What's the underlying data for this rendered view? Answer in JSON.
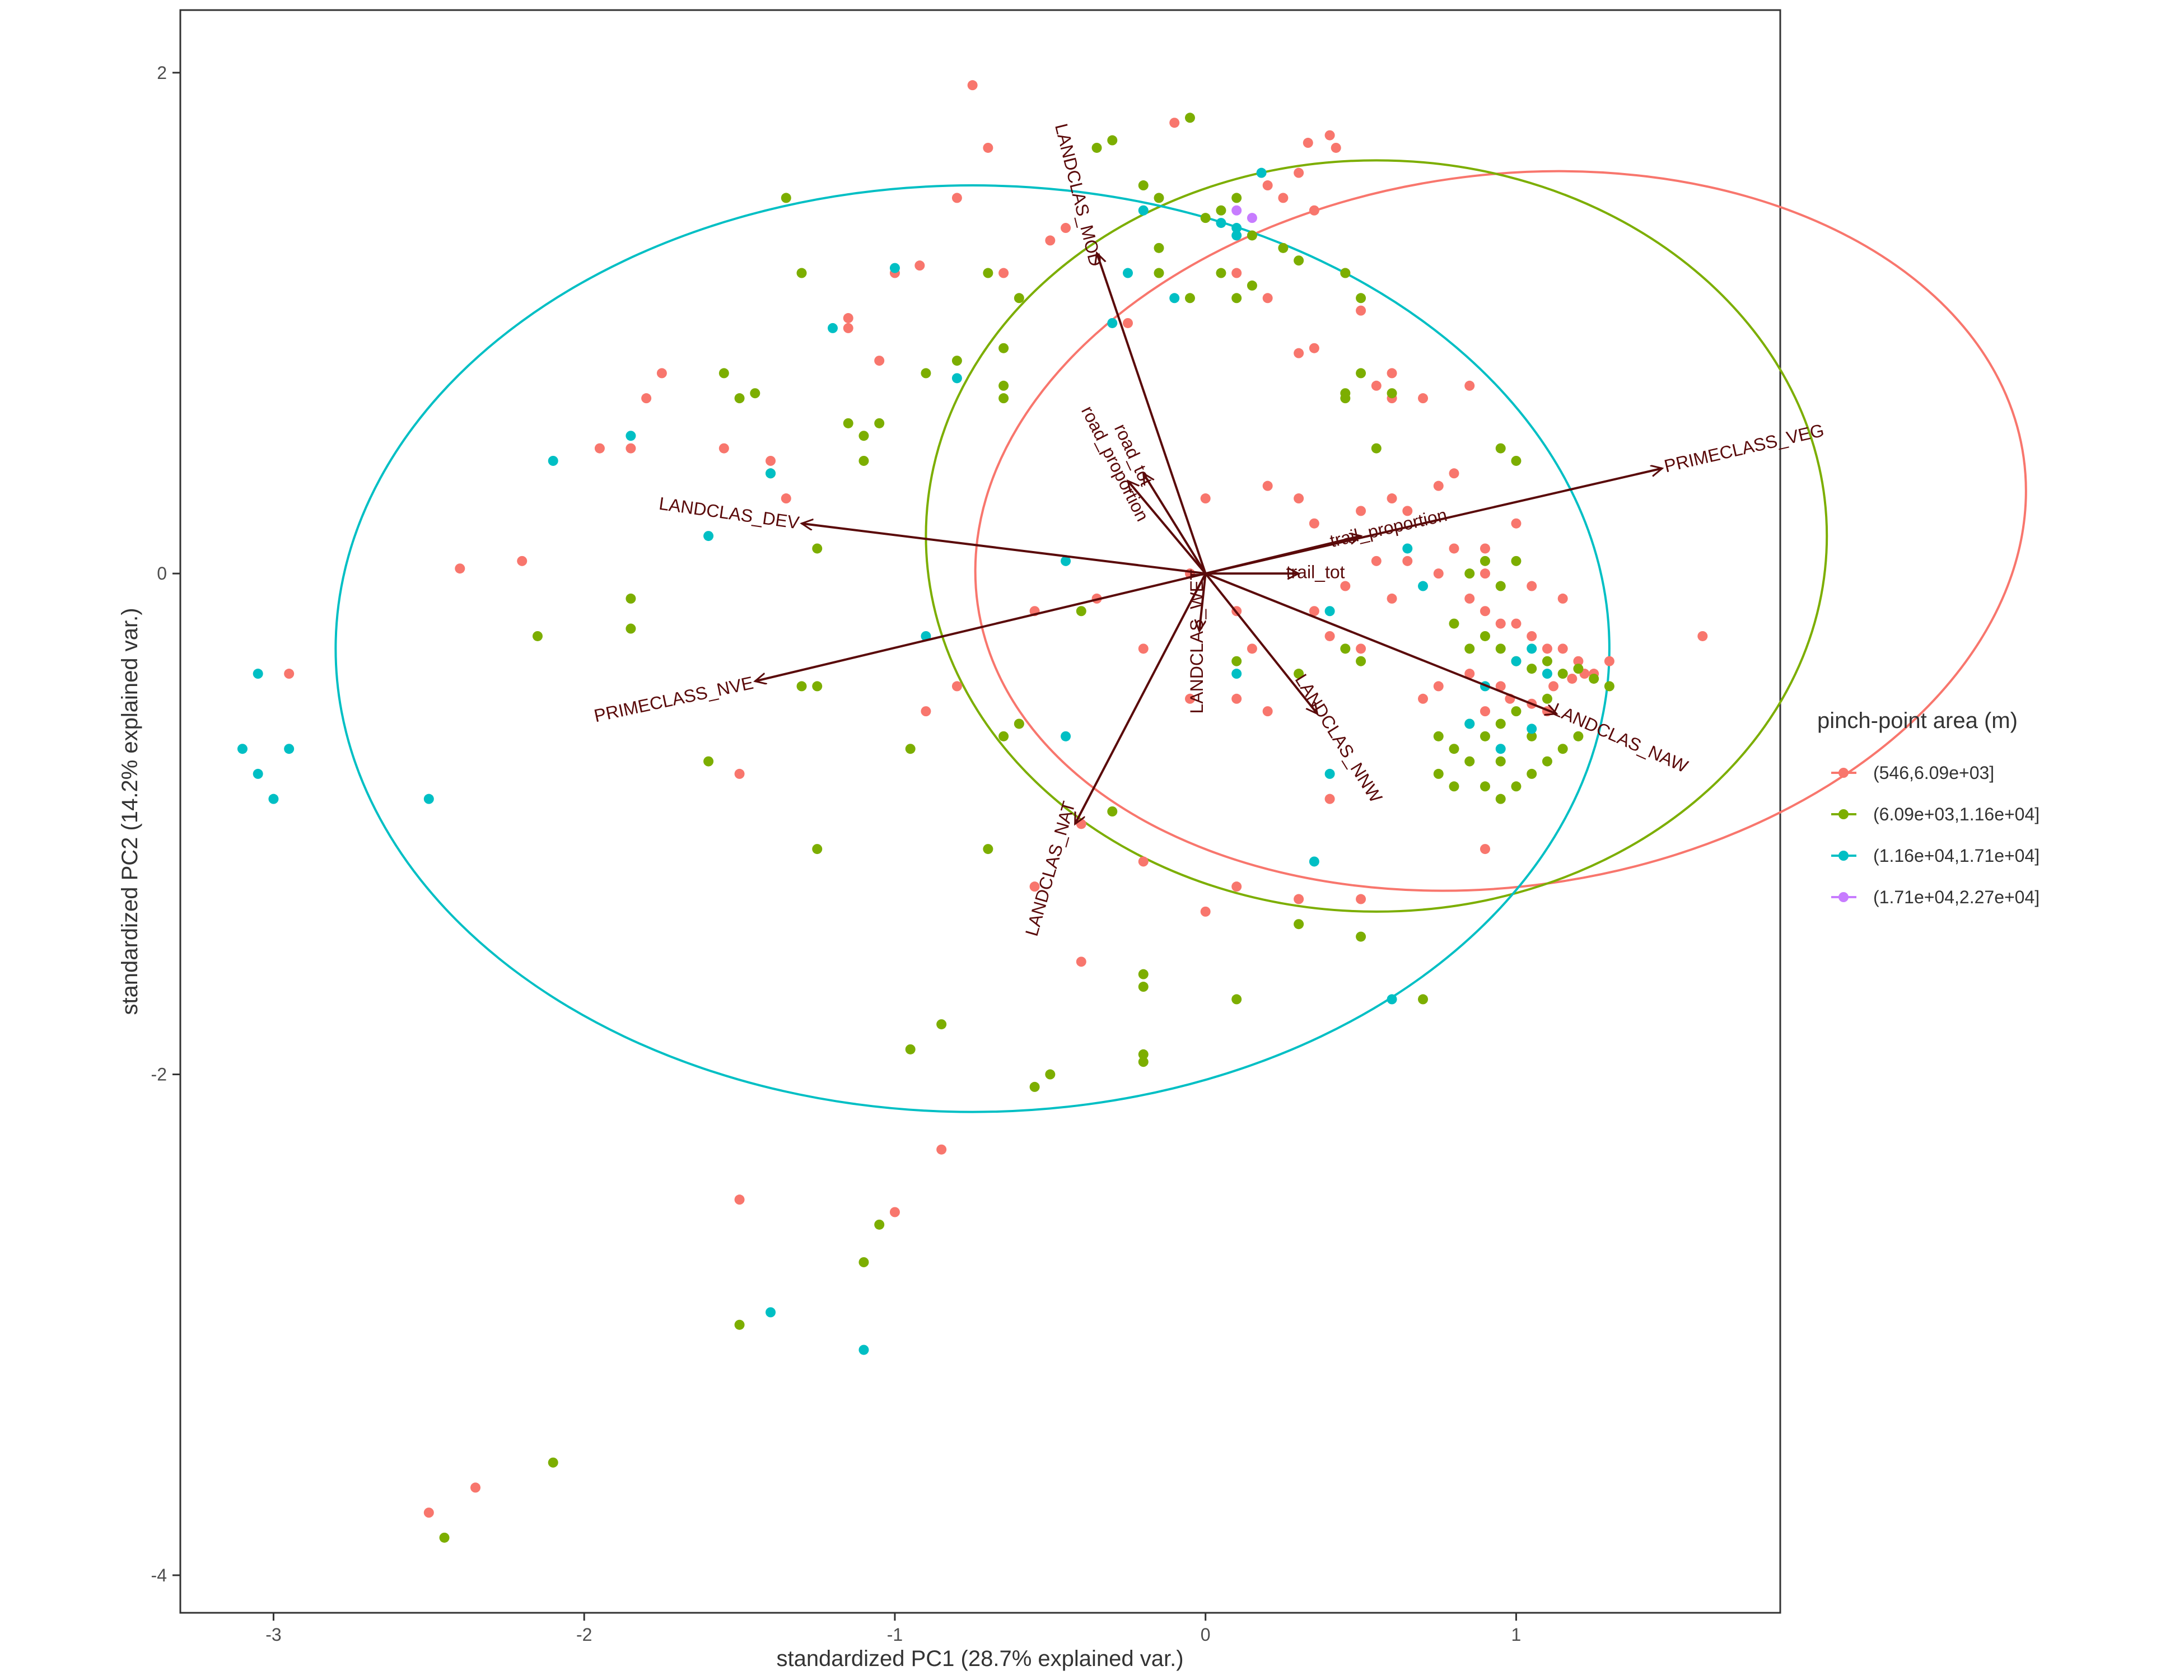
{
  "chart_data": {
    "type": "scatter",
    "subtype": "pca-biplot",
    "xlabel": "standardized PC1 (28.7% explained var.)",
    "ylabel": "standardized PC2 (14.2% explained var.)",
    "xlim": [
      -3.3,
      1.85
    ],
    "ylim": [
      -4.15,
      2.25
    ],
    "x_ticks": [
      -3,
      -2,
      -1,
      0,
      1
    ],
    "y_ticks": [
      -4,
      -2,
      0,
      2
    ],
    "grid": false,
    "legend": {
      "title": "pinch-point area (m)",
      "placement": "right",
      "entries": [
        "(546,6.09e+03]",
        "(6.09e+03,1.16e+04]",
        "(1.16e+04,1.71e+04]",
        "(1.71e+04,2.27e+04]"
      ]
    },
    "colors": [
      "#F8766D",
      "#7CAE00",
      "#00BFC4",
      "#C77CFF"
    ],
    "arrow_color": "#5a0a0a",
    "loadings": [
      {
        "name": "LANDCLAS_MOD",
        "x": -0.35,
        "y": 1.28,
        "angle": 76
      },
      {
        "name": "road_tot",
        "x": -0.2,
        "y": 0.4,
        "angle": 65
      },
      {
        "name": "road_proportion",
        "x": -0.25,
        "y": 0.37,
        "angle": 63
      },
      {
        "name": "LANDCLAS_DEV",
        "x": -1.3,
        "y": 0.2,
        "angle": 8
      },
      {
        "name": "PRIMECLASS_NVE",
        "x": -1.45,
        "y": -0.43,
        "angle": -12
      },
      {
        "name": "LANDCLAS_WET",
        "x": -0.02,
        "y": -0.23,
        "angle": -90
      },
      {
        "name": "LANDCLAS_NAT",
        "x": -0.42,
        "y": -1.0,
        "angle": -74
      },
      {
        "name": "LANDCLAS_NNW",
        "x": 0.36,
        "y": -0.56,
        "angle": 58
      },
      {
        "name": "LANDCLAS_NAW",
        "x": 1.13,
        "y": -0.56,
        "angle": 24
      },
      {
        "name": "PRIMECLASS_VEG",
        "x": 1.47,
        "y": 0.42,
        "angle": -13
      },
      {
        "name": "trail_proportion",
        "x": 0.5,
        "y": 0.15,
        "angle": -13
      },
      {
        "name": "trail_tot",
        "x": 0.3,
        "y": 0.0,
        "angle": 0
      }
    ],
    "ellipses": [
      {
        "group": 0,
        "cx": 0.95,
        "cy": 0.17,
        "rx": 1.7,
        "ry": 1.42,
        "angle": 8
      },
      {
        "group": 1,
        "cx": 0.55,
        "cy": 0.15,
        "rx": 1.45,
        "ry": 1.5,
        "angle": 0
      },
      {
        "group": 2,
        "cx": -0.75,
        "cy": -0.3,
        "rx": 2.05,
        "ry": 1.85,
        "angle": 0
      }
    ],
    "series": [
      {
        "name": "(546,6.09e+03]",
        "points": [
          [
            -0.75,
            1.95
          ],
          [
            -0.7,
            1.7
          ],
          [
            -0.45,
            1.38
          ],
          [
            -0.1,
            1.8
          ],
          [
            0.25,
            1.5
          ],
          [
            0.3,
            1.6
          ],
          [
            0.4,
            1.75
          ],
          [
            0.42,
            1.7
          ],
          [
            0.33,
            1.72
          ],
          [
            0.2,
            1.55
          ],
          [
            0.35,
            1.45
          ],
          [
            -0.65,
            1.2
          ],
          [
            -0.8,
            1.5
          ],
          [
            -0.5,
            1.33
          ],
          [
            -0.92,
            1.23
          ],
          [
            -1.15,
            1.02
          ],
          [
            -1.15,
            0.98
          ],
          [
            -1.0,
            1.2
          ],
          [
            0.5,
            1.05
          ],
          [
            0.35,
            0.9
          ],
          [
            0.3,
            0.88
          ],
          [
            0.2,
            1.1
          ],
          [
            0.45,
            1.2
          ],
          [
            0.6,
            0.8
          ],
          [
            0.6,
            0.7
          ],
          [
            0.55,
            0.75
          ],
          [
            0.7,
            0.7
          ],
          [
            0.85,
            0.75
          ],
          [
            -1.75,
            0.8
          ],
          [
            -1.8,
            0.7
          ],
          [
            -1.85,
            0.5
          ],
          [
            -1.95,
            0.5
          ],
          [
            -1.55,
            0.5
          ],
          [
            -1.4,
            0.45
          ],
          [
            -1.35,
            0.3
          ],
          [
            -2.4,
            0.02
          ],
          [
            -2.2,
            0.05
          ],
          [
            -2.95,
            -0.4
          ],
          [
            0.5,
            0.25
          ],
          [
            0.6,
            0.3
          ],
          [
            0.75,
            0.35
          ],
          [
            0.65,
            0.25
          ],
          [
            0.8,
            0.1
          ],
          [
            0.9,
            0.1
          ],
          [
            1.0,
            0.2
          ],
          [
            0.3,
            0.3
          ],
          [
            0.35,
            0.2
          ],
          [
            0.2,
            0.35
          ],
          [
            0.8,
            0.4
          ],
          [
            0.85,
            -0.1
          ],
          [
            0.9,
            -0.15
          ],
          [
            0.95,
            -0.2
          ],
          [
            1.0,
            -0.2
          ],
          [
            1.05,
            -0.25
          ],
          [
            1.1,
            -0.3
          ],
          [
            1.15,
            -0.3
          ],
          [
            1.2,
            -0.35
          ],
          [
            1.25,
            -0.4
          ],
          [
            1.3,
            -0.35
          ],
          [
            1.22,
            -0.4
          ],
          [
            1.18,
            -0.42
          ],
          [
            1.12,
            -0.45
          ],
          [
            0.95,
            -0.45
          ],
          [
            0.85,
            -0.4
          ],
          [
            0.75,
            -0.45
          ],
          [
            0.7,
            -0.5
          ],
          [
            0.9,
            -0.55
          ],
          [
            0.98,
            -0.5
          ],
          [
            1.05,
            -0.52
          ],
          [
            1.1,
            -0.55
          ],
          [
            0.5,
            -0.3
          ],
          [
            0.4,
            -0.25
          ],
          [
            0.35,
            -0.15
          ],
          [
            0.6,
            -0.1
          ],
          [
            0.45,
            -0.05
          ],
          [
            1.6,
            -0.25
          ],
          [
            1.05,
            -0.05
          ],
          [
            1.15,
            -0.1
          ],
          [
            0.9,
            0.0
          ],
          [
            0.75,
            0.0
          ],
          [
            0.65,
            0.05
          ],
          [
            0.55,
            0.05
          ],
          [
            0.1,
            -0.15
          ],
          [
            0.15,
            -0.3
          ],
          [
            0.1,
            -0.5
          ],
          [
            0.2,
            -0.55
          ],
          [
            -0.05,
            -0.5
          ],
          [
            -0.2,
            -0.3
          ],
          [
            -0.35,
            -0.1
          ],
          [
            -0.55,
            -0.15
          ],
          [
            -0.8,
            -0.45
          ],
          [
            -0.6,
            -0.6
          ],
          [
            -0.55,
            -1.25
          ],
          [
            -0.2,
            -1.15
          ],
          [
            -0.4,
            -1.0
          ],
          [
            0.3,
            -1.3
          ],
          [
            0.5,
            -1.3
          ],
          [
            0.9,
            -1.1
          ],
          [
            0.1,
            -1.25
          ],
          [
            0.0,
            -1.35
          ],
          [
            -0.4,
            -1.55
          ],
          [
            -1.5,
            -0.8
          ],
          [
            -0.9,
            -0.55
          ],
          [
            -0.85,
            -2.3
          ],
          [
            -1.5,
            -2.5
          ],
          [
            -1.0,
            -2.55
          ],
          [
            -2.35,
            -3.65
          ],
          [
            -2.5,
            -3.75
          ],
          [
            -1.05,
            0.85
          ],
          [
            0.0,
            0.3
          ],
          [
            -0.25,
            1.0
          ],
          [
            0.1,
            1.2
          ],
          [
            -0.05,
            0.0
          ],
          [
            0.4,
            -0.9
          ]
        ]
      },
      {
        "name": "(6.09e+03,1.16e+04]",
        "points": [
          [
            -0.3,
            1.73
          ],
          [
            -0.35,
            1.7
          ],
          [
            -0.05,
            1.82
          ],
          [
            -0.2,
            1.55
          ],
          [
            -0.15,
            1.5
          ],
          [
            0.1,
            1.5
          ],
          [
            0.0,
            1.42
          ],
          [
            0.05,
            1.45
          ],
          [
            0.15,
            1.35
          ],
          [
            0.25,
            1.3
          ],
          [
            0.5,
            1.1
          ],
          [
            0.3,
            1.25
          ],
          [
            0.45,
            1.2
          ],
          [
            -0.15,
            1.3
          ],
          [
            -0.7,
            1.2
          ],
          [
            -0.6,
            1.1
          ],
          [
            -0.05,
            1.1
          ],
          [
            -0.15,
            1.2
          ],
          [
            0.15,
            1.15
          ],
          [
            0.1,
            1.1
          ],
          [
            0.05,
            1.2
          ],
          [
            -1.35,
            1.5
          ],
          [
            -1.3,
            1.2
          ],
          [
            -0.65,
            0.9
          ],
          [
            -0.8,
            0.85
          ],
          [
            -0.9,
            0.8
          ],
          [
            -0.65,
            0.75
          ],
          [
            -0.65,
            0.7
          ],
          [
            -1.05,
            0.6
          ],
          [
            -1.1,
            0.55
          ],
          [
            -1.15,
            0.6
          ],
          [
            -1.1,
            0.45
          ],
          [
            -1.55,
            0.8
          ],
          [
            -1.5,
            0.7
          ],
          [
            -1.45,
            0.72
          ],
          [
            -1.4,
            0.4
          ],
          [
            -1.25,
            0.1
          ],
          [
            -2.15,
            -0.25
          ],
          [
            -1.85,
            -0.1
          ],
          [
            -1.85,
            -0.22
          ],
          [
            0.45,
            0.7
          ],
          [
            0.5,
            0.8
          ],
          [
            0.95,
            0.5
          ],
          [
            1.0,
            0.45
          ],
          [
            0.55,
            0.5
          ],
          [
            0.45,
            0.72
          ],
          [
            0.6,
            0.72
          ],
          [
            0.8,
            -0.2
          ],
          [
            0.85,
            -0.3
          ],
          [
            0.9,
            -0.25
          ],
          [
            0.95,
            -0.3
          ],
          [
            1.0,
            -0.35
          ],
          [
            1.05,
            -0.38
          ],
          [
            1.1,
            -0.35
          ],
          [
            1.15,
            -0.4
          ],
          [
            1.2,
            -0.38
          ],
          [
            1.25,
            -0.42
          ],
          [
            1.3,
            -0.45
          ],
          [
            1.1,
            -0.5
          ],
          [
            1.0,
            -0.55
          ],
          [
            0.95,
            -0.6
          ],
          [
            0.9,
            -0.65
          ],
          [
            0.85,
            -0.6
          ],
          [
            0.8,
            -0.7
          ],
          [
            0.75,
            -0.8
          ],
          [
            0.8,
            -0.85
          ],
          [
            0.9,
            -0.85
          ],
          [
            0.95,
            -0.9
          ],
          [
            1.0,
            -0.85
          ],
          [
            1.05,
            -0.8
          ],
          [
            1.1,
            -0.75
          ],
          [
            1.15,
            -0.7
          ],
          [
            1.2,
            -0.65
          ],
          [
            0.75,
            -0.65
          ],
          [
            0.85,
            -0.75
          ],
          [
            0.95,
            -0.75
          ],
          [
            1.05,
            -0.65
          ],
          [
            0.9,
            0.05
          ],
          [
            1.0,
            0.05
          ],
          [
            0.85,
            0.0
          ],
          [
            0.95,
            -0.05
          ],
          [
            0.45,
            -0.3
          ],
          [
            0.5,
            -0.35
          ],
          [
            0.3,
            -0.4
          ],
          [
            0.1,
            -0.35
          ],
          [
            -0.4,
            -0.15
          ],
          [
            -0.6,
            -0.6
          ],
          [
            -0.65,
            -0.65
          ],
          [
            -0.95,
            -0.7
          ],
          [
            -0.7,
            -1.1
          ],
          [
            -0.3,
            -0.95
          ],
          [
            -1.25,
            -0.45
          ],
          [
            -1.25,
            -1.1
          ],
          [
            -1.3,
            -0.45
          ],
          [
            -1.6,
            -0.75
          ],
          [
            -0.2,
            -1.6
          ],
          [
            -0.2,
            -1.65
          ],
          [
            0.1,
            -1.7
          ],
          [
            0.3,
            -1.4
          ],
          [
            0.5,
            -1.45
          ],
          [
            0.7,
            -1.7
          ],
          [
            -0.95,
            -1.9
          ],
          [
            -0.85,
            -1.8
          ],
          [
            -0.5,
            -2.0
          ],
          [
            -0.55,
            -2.05
          ],
          [
            -0.2,
            -1.95
          ],
          [
            -0.2,
            -1.92
          ],
          [
            -1.05,
            -2.6
          ],
          [
            -1.1,
            -2.75
          ],
          [
            -1.5,
            -3.0
          ],
          [
            -2.1,
            -3.55
          ],
          [
            -2.45,
            -3.85
          ]
        ]
      },
      {
        "name": "(1.16e+04,1.71e+04]",
        "points": [
          [
            0.18,
            1.6
          ],
          [
            -0.2,
            1.45
          ],
          [
            0.05,
            1.4
          ],
          [
            0.1,
            1.38
          ],
          [
            0.1,
            1.35
          ],
          [
            -0.1,
            1.1
          ],
          [
            -0.25,
            1.2
          ],
          [
            -0.3,
            1.0
          ],
          [
            -1.0,
            1.22
          ],
          [
            -1.2,
            0.98
          ],
          [
            -0.8,
            0.78
          ],
          [
            -1.85,
            0.55
          ],
          [
            -2.1,
            0.45
          ],
          [
            -1.4,
            0.4
          ],
          [
            -1.6,
            0.15
          ],
          [
            -0.45,
            0.05
          ],
          [
            0.65,
            0.1
          ],
          [
            0.7,
            -0.05
          ],
          [
            0.4,
            -0.15
          ],
          [
            1.05,
            -0.3
          ],
          [
            1.0,
            -0.35
          ],
          [
            1.1,
            -0.4
          ],
          [
            0.9,
            -0.45
          ],
          [
            0.85,
            -0.6
          ],
          [
            0.95,
            -0.7
          ],
          [
            1.05,
            -0.62
          ],
          [
            0.1,
            -0.4
          ],
          [
            0.4,
            -0.8
          ],
          [
            0.35,
            -1.15
          ],
          [
            0.6,
            -1.7
          ],
          [
            -0.45,
            -0.65
          ],
          [
            -0.9,
            -0.25
          ],
          [
            -3.05,
            -0.4
          ],
          [
            -3.1,
            -0.7
          ],
          [
            -3.05,
            -0.8
          ],
          [
            -3.0,
            -0.9
          ],
          [
            -2.95,
            -0.7
          ],
          [
            -2.5,
            -0.9
          ],
          [
            -1.4,
            -2.95
          ],
          [
            -1.1,
            -3.1
          ]
        ]
      },
      {
        "name": "(1.71e+04,2.27e+04]",
        "points": [
          [
            0.1,
            1.45
          ],
          [
            0.15,
            1.42
          ]
        ]
      }
    ]
  }
}
